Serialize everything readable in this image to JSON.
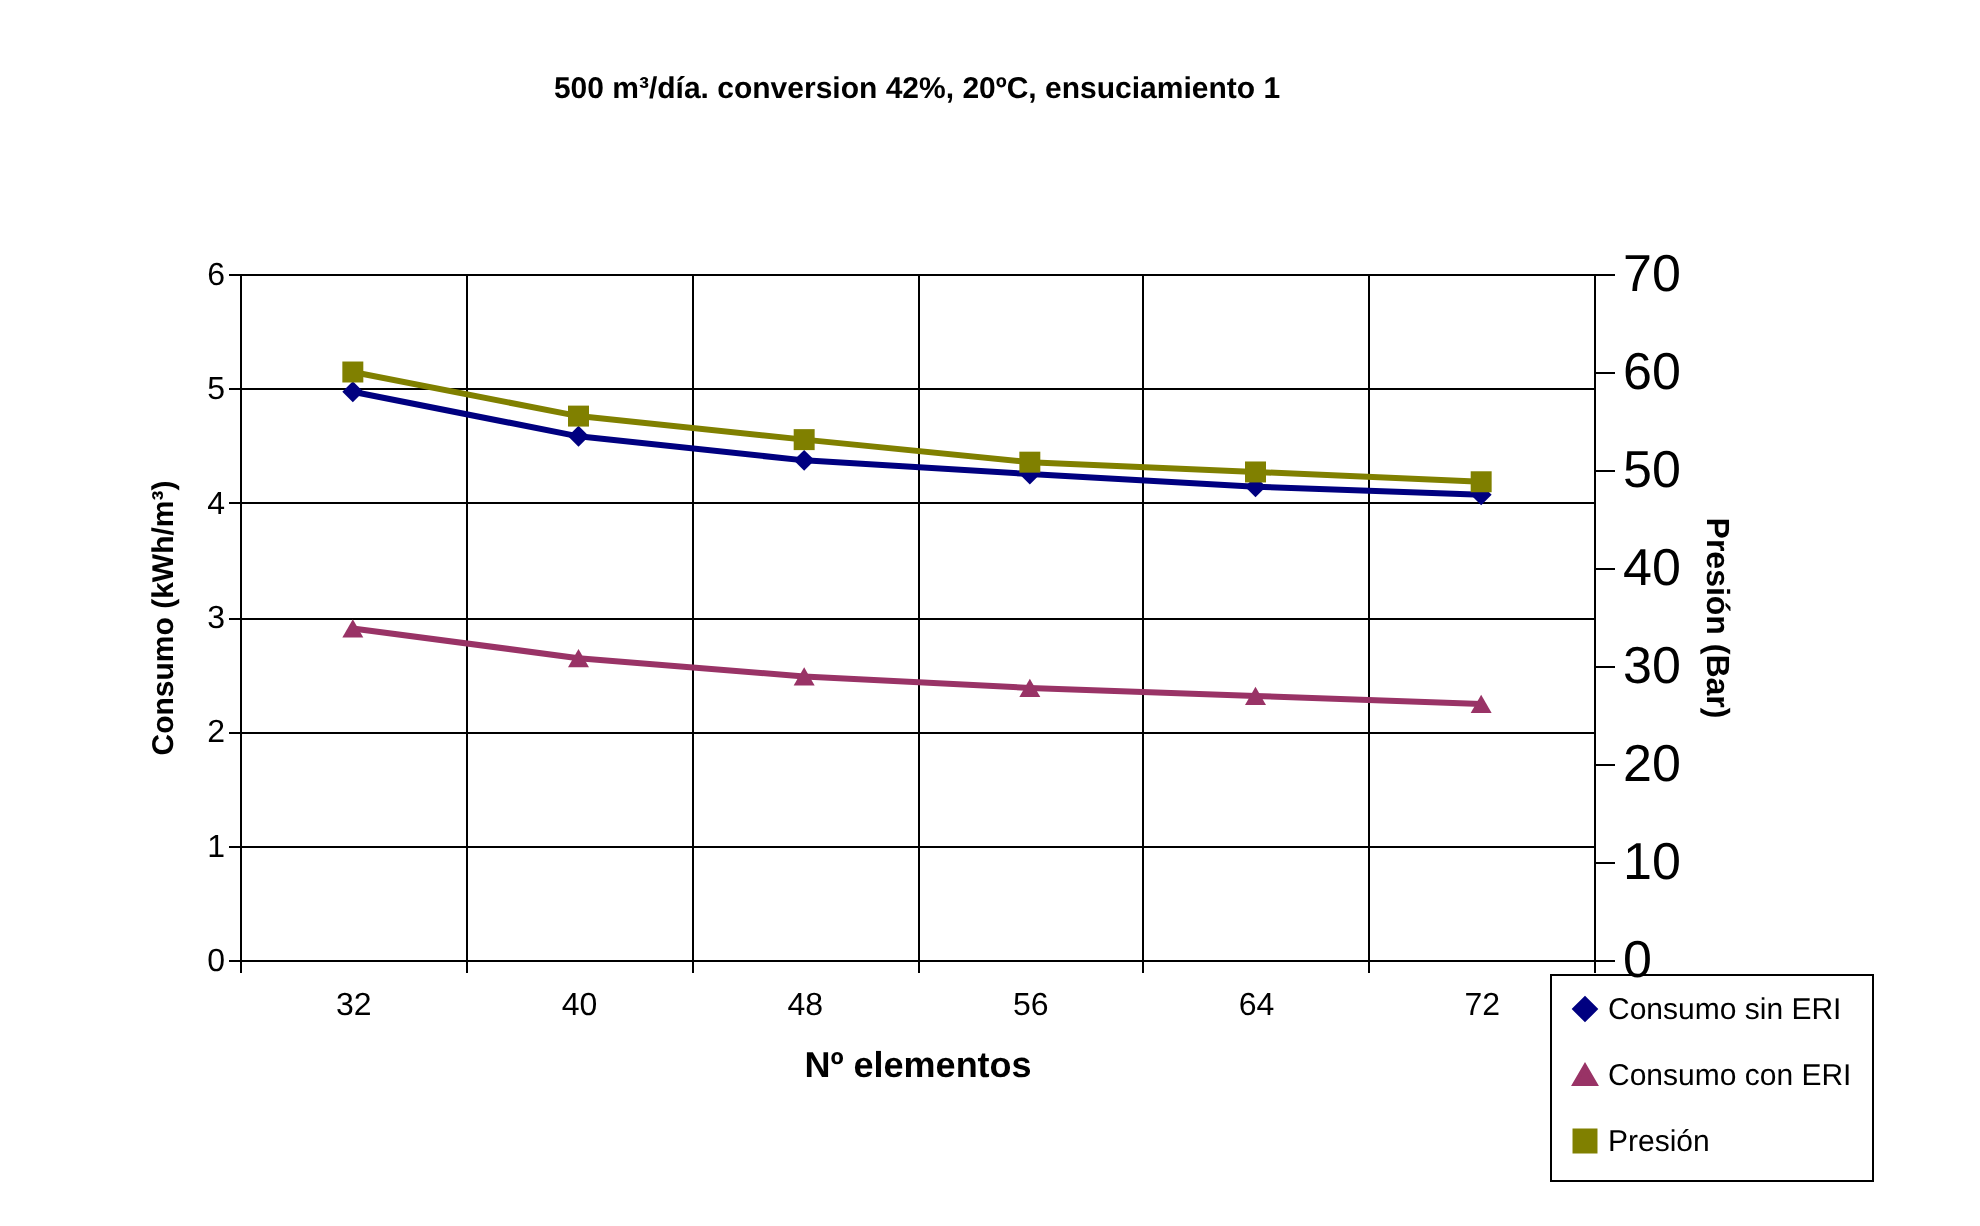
{
  "chart_data": {
    "type": "line",
    "title": "500 m³/día. conversion 42%, 20ºC, ensuciamiento 1",
    "xlabel": "Nº elementos",
    "ylabel": "Consumo (kWh/m³)",
    "y2label": "Presión (Bar)",
    "categories": [
      "32",
      "40",
      "48",
      "56",
      "64",
      "72"
    ],
    "series": [
      {
        "name": "Consumo sin ERI",
        "color": "#000080",
        "marker": "diamond",
        "values": [
          4.97,
          4.58,
          4.37,
          4.25,
          4.14,
          4.07
        ]
      },
      {
        "name": "Consumo con ERI",
        "color": "#993366",
        "marker": "triangle",
        "values": [
          2.9,
          2.64,
          2.48,
          2.38,
          2.31,
          2.24
        ]
      },
      {
        "name": "Presión",
        "color": "#808000",
        "marker": "square",
        "axis": "y2",
        "values": [
          60,
          55.5,
          53.1,
          50.8,
          49.8,
          48.8
        ]
      }
    ],
    "ylim": [
      0,
      6
    ],
    "yticks": [
      0,
      1,
      2,
      3,
      4,
      5,
      6
    ],
    "y2lim": [
      0,
      70
    ],
    "y2ticks": [
      0,
      10,
      20,
      30,
      40,
      50,
      60,
      70
    ],
    "grid": true,
    "legend": "bottom right",
    "line_style": "solid"
  }
}
